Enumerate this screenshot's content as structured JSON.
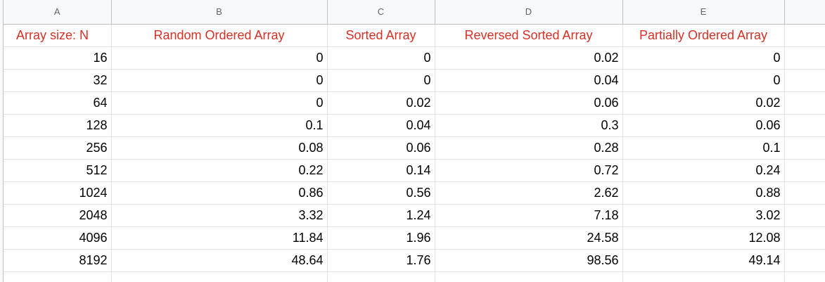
{
  "columns": [
    "A",
    "B",
    "C",
    "D",
    "E"
  ],
  "header_row": [
    "Array size: N",
    "Random Ordered Array",
    "Sorted Array",
    "Reversed Sorted Array",
    "Partially Ordered Array"
  ],
  "rows": [
    [
      "16",
      "0",
      "0",
      "0.02",
      "0"
    ],
    [
      "32",
      "0",
      "0",
      "0.04",
      "0"
    ],
    [
      "64",
      "0",
      "0.02",
      "0.06",
      "0.02"
    ],
    [
      "128",
      "0.1",
      "0.04",
      "0.3",
      "0.06"
    ],
    [
      "256",
      "0.08",
      "0.06",
      "0.28",
      "0.1"
    ],
    [
      "512",
      "0.22",
      "0.14",
      "0.72",
      "0.24"
    ],
    [
      "1024",
      "0.86",
      "0.56",
      "2.62",
      "0.88"
    ],
    [
      "2048",
      "3.32",
      "1.24",
      "7.18",
      "3.02"
    ],
    [
      "4096",
      "11.84",
      "1.96",
      "24.58",
      "12.08"
    ],
    [
      "8192",
      "48.64",
      "1.76",
      "98.56",
      "49.14"
    ]
  ],
  "colors": {
    "header_text": "#d93025",
    "column_header_bg": "#f8f9fa",
    "grid_line": "#e2e3e3"
  }
}
